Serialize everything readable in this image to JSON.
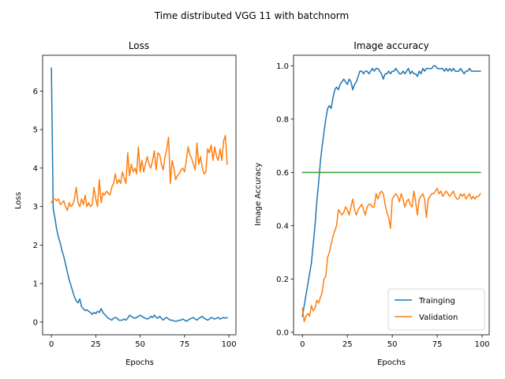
{
  "figure_title": "Time distributed VGG 11 with batchnorm",
  "colors": {
    "training": "#1f77b4",
    "validation": "#ff7f0e",
    "reference": "#2ca02c"
  },
  "chart_data": [
    {
      "type": "line",
      "title": "Loss",
      "xlabel": "Epochs",
      "ylabel": "Loss",
      "xlim": [
        -4.95,
        103.95
      ],
      "ylim": [
        -0.33,
        6.93
      ],
      "xticks": [
        0,
        25,
        50,
        75,
        100
      ],
      "yticks": [
        0,
        1,
        2,
        3,
        4,
        5,
        6
      ],
      "grid": false,
      "legend": "none",
      "series": [
        {
          "color": "#1f77b4",
          "x": [
            0,
            1,
            2,
            3,
            4,
            5,
            6,
            7,
            8,
            9,
            10,
            11,
            12,
            13,
            14,
            15,
            16,
            17,
            18,
            19,
            20,
            21,
            22,
            23,
            24,
            25,
            26,
            27,
            28,
            29,
            30,
            31,
            32,
            33,
            34,
            35,
            36,
            37,
            38,
            39,
            40,
            41,
            42,
            43,
            44,
            45,
            46,
            47,
            48,
            49,
            50,
            51,
            52,
            53,
            54,
            55,
            56,
            57,
            58,
            59,
            60,
            61,
            62,
            63,
            64,
            65,
            66,
            67,
            68,
            69,
            70,
            71,
            72,
            73,
            74,
            75,
            76,
            77,
            78,
            79,
            80,
            81,
            82,
            83,
            84,
            85,
            86,
            87,
            88,
            89,
            90,
            91,
            92,
            93,
            94,
            95,
            96,
            97,
            98,
            99
          ],
          "y": [
            6.6,
            2.95,
            2.7,
            2.4,
            2.2,
            2.05,
            1.85,
            1.7,
            1.5,
            1.3,
            1.1,
            0.95,
            0.8,
            0.65,
            0.55,
            0.5,
            0.6,
            0.4,
            0.35,
            0.3,
            0.32,
            0.28,
            0.25,
            0.2,
            0.25,
            0.22,
            0.28,
            0.25,
            0.35,
            0.25,
            0.2,
            0.15,
            0.1,
            0.08,
            0.05,
            0.1,
            0.12,
            0.1,
            0.05,
            0.05,
            0.05,
            0.08,
            0.05,
            0.1,
            0.18,
            0.15,
            0.12,
            0.1,
            0.12,
            0.15,
            0.18,
            0.15,
            0.12,
            0.1,
            0.08,
            0.1,
            0.15,
            0.12,
            0.18,
            0.12,
            0.1,
            0.15,
            0.1,
            0.05,
            0.1,
            0.12,
            0.08,
            0.05,
            0.05,
            0.03,
            0.02,
            0.03,
            0.05,
            0.05,
            0.08,
            0.05,
            0.02,
            0.05,
            0.08,
            0.1,
            0.12,
            0.08,
            0.05,
            0.1,
            0.12,
            0.15,
            0.1,
            0.08,
            0.05,
            0.08,
            0.12,
            0.1,
            0.08,
            0.1,
            0.12,
            0.08,
            0.1,
            0.12,
            0.1,
            0.12
          ]
        },
        {
          "color": "#ff7f0e",
          "x": [
            0,
            1,
            2,
            3,
            4,
            5,
            6,
            7,
            8,
            9,
            10,
            11,
            12,
            13,
            14,
            15,
            16,
            17,
            18,
            19,
            20,
            21,
            22,
            23,
            24,
            25,
            26,
            27,
            28,
            29,
            30,
            31,
            32,
            33,
            34,
            35,
            36,
            37,
            38,
            39,
            40,
            41,
            42,
            43,
            44,
            45,
            46,
            47,
            48,
            49,
            50,
            51,
            52,
            53,
            54,
            55,
            56,
            57,
            58,
            59,
            60,
            61,
            62,
            63,
            64,
            65,
            66,
            67,
            68,
            69,
            70,
            71,
            72,
            73,
            74,
            75,
            76,
            77,
            78,
            79,
            80,
            81,
            82,
            83,
            84,
            85,
            86,
            87,
            88,
            89,
            90,
            91,
            92,
            93,
            94,
            95,
            96,
            97,
            98,
            99
          ],
          "y": [
            3.1,
            3.2,
            3.2,
            3.15,
            3.2,
            3.05,
            3.1,
            3.15,
            3.0,
            2.9,
            3.1,
            3.0,
            3.05,
            3.2,
            3.5,
            3.1,
            3.0,
            3.2,
            3.05,
            3.3,
            3.0,
            3.1,
            3.0,
            3.05,
            3.5,
            3.2,
            3.0,
            3.7,
            3.1,
            3.35,
            3.3,
            3.4,
            3.35,
            3.3,
            3.5,
            3.6,
            3.85,
            3.6,
            3.7,
            3.6,
            3.9,
            3.75,
            3.6,
            4.4,
            3.8,
            4.1,
            3.9,
            4.0,
            3.85,
            4.55,
            3.9,
            4.2,
            3.9,
            4.1,
            4.3,
            4.1,
            4.0,
            4.2,
            4.45,
            3.95,
            4.4,
            4.35,
            4.1,
            3.95,
            4.3,
            4.5,
            4.8,
            3.6,
            4.2,
            4.0,
            3.7,
            3.8,
            3.85,
            3.95,
            4.0,
            3.9,
            4.2,
            4.55,
            4.35,
            4.25,
            4.1,
            3.95,
            4.65,
            4.1,
            4.3,
            4.0,
            3.85,
            3.9,
            4.5,
            4.4,
            4.6,
            4.2,
            4.55,
            4.3,
            4.2,
            4.5,
            4.2,
            4.7,
            4.85,
            4.1
          ]
        }
      ]
    },
    {
      "type": "line",
      "title": "Image accuracy",
      "xlabel": "Epochs",
      "ylabel": "Image Accuracy",
      "xlim": [
        -4.95,
        103.95
      ],
      "ylim": [
        -0.0095,
        1.0395
      ],
      "xticks": [
        0,
        25,
        50,
        75,
        100
      ],
      "yticks": [
        0.0,
        0.2,
        0.4,
        0.6,
        0.8,
        1.0
      ],
      "ytick_labels": [
        "0.0",
        "0.2",
        "0.4",
        "0.6",
        "0.8",
        "1.0"
      ],
      "grid": false,
      "legend": "lower right",
      "series": [
        {
          "name": "Trainging",
          "color": "#1f77b4",
          "x": [
            0,
            1,
            2,
            3,
            4,
            5,
            6,
            7,
            8,
            9,
            10,
            11,
            12,
            13,
            14,
            15,
            16,
            17,
            18,
            19,
            20,
            21,
            22,
            23,
            24,
            25,
            26,
            27,
            28,
            29,
            30,
            31,
            32,
            33,
            34,
            35,
            36,
            37,
            38,
            39,
            40,
            41,
            42,
            43,
            44,
            45,
            46,
            47,
            48,
            49,
            50,
            51,
            52,
            53,
            54,
            55,
            56,
            57,
            58,
            59,
            60,
            61,
            62,
            63,
            64,
            65,
            66,
            67,
            68,
            69,
            70,
            71,
            72,
            73,
            74,
            75,
            76,
            77,
            78,
            79,
            80,
            81,
            82,
            83,
            84,
            85,
            86,
            87,
            88,
            89,
            90,
            91,
            92,
            93,
            94,
            95,
            96,
            97,
            98,
            99
          ],
          "y": [
            0.06,
            0.1,
            0.14,
            0.18,
            0.22,
            0.26,
            0.33,
            0.4,
            0.49,
            0.56,
            0.64,
            0.7,
            0.75,
            0.8,
            0.84,
            0.85,
            0.84,
            0.88,
            0.91,
            0.92,
            0.91,
            0.93,
            0.94,
            0.95,
            0.94,
            0.93,
            0.95,
            0.94,
            0.91,
            0.93,
            0.94,
            0.96,
            0.98,
            0.98,
            0.97,
            0.98,
            0.98,
            0.97,
            0.98,
            0.99,
            0.98,
            0.99,
            0.99,
            0.98,
            0.97,
            0.95,
            0.97,
            0.97,
            0.98,
            0.97,
            0.98,
            0.98,
            0.99,
            0.98,
            0.97,
            0.97,
            0.98,
            0.97,
            0.98,
            0.99,
            0.97,
            0.98,
            0.97,
            0.97,
            0.96,
            0.98,
            0.97,
            0.99,
            0.98,
            0.99,
            0.99,
            0.99,
            0.99,
            1.0,
            1.0,
            0.99,
            0.99,
            0.99,
            0.99,
            0.98,
            0.99,
            0.98,
            0.99,
            0.98,
            0.99,
            0.98,
            0.98,
            0.98,
            0.99,
            0.98,
            0.97,
            0.98,
            0.98,
            0.99,
            0.98,
            0.98,
            0.98,
            0.98,
            0.98,
            0.98
          ]
        },
        {
          "name": "Validation",
          "color": "#ff7f0e",
          "x": [
            0,
            1,
            2,
            3,
            4,
            5,
            6,
            7,
            8,
            9,
            10,
            11,
            12,
            13,
            14,
            15,
            16,
            17,
            18,
            19,
            20,
            21,
            22,
            23,
            24,
            25,
            26,
            27,
            28,
            29,
            30,
            31,
            32,
            33,
            34,
            35,
            36,
            37,
            38,
            39,
            40,
            41,
            42,
            43,
            44,
            45,
            46,
            47,
            48,
            49,
            50,
            51,
            52,
            53,
            54,
            55,
            56,
            57,
            58,
            59,
            60,
            61,
            62,
            63,
            64,
            65,
            66,
            67,
            68,
            69,
            70,
            71,
            72,
            73,
            74,
            75,
            76,
            77,
            78,
            79,
            80,
            81,
            82,
            83,
            84,
            85,
            86,
            87,
            88,
            89,
            90,
            91,
            92,
            93,
            94,
            95,
            96,
            97,
            98,
            99
          ],
          "y": [
            0.09,
            0.04,
            0.06,
            0.07,
            0.06,
            0.1,
            0.08,
            0.09,
            0.12,
            0.11,
            0.13,
            0.15,
            0.2,
            0.21,
            0.28,
            0.3,
            0.33,
            0.36,
            0.38,
            0.4,
            0.46,
            0.45,
            0.44,
            0.45,
            0.47,
            0.46,
            0.44,
            0.47,
            0.5,
            0.46,
            0.44,
            0.46,
            0.47,
            0.48,
            0.46,
            0.44,
            0.47,
            0.48,
            0.48,
            0.47,
            0.47,
            0.52,
            0.5,
            0.52,
            0.53,
            0.52,
            0.48,
            0.45,
            0.43,
            0.39,
            0.5,
            0.51,
            0.52,
            0.51,
            0.49,
            0.52,
            0.5,
            0.47,
            0.49,
            0.5,
            0.48,
            0.47,
            0.53,
            0.49,
            0.44,
            0.5,
            0.51,
            0.52,
            0.5,
            0.43,
            0.5,
            0.51,
            0.52,
            0.52,
            0.53,
            0.54,
            0.52,
            0.53,
            0.51,
            0.52,
            0.53,
            0.52,
            0.51,
            0.52,
            0.53,
            0.51,
            0.5,
            0.5,
            0.52,
            0.51,
            0.52,
            0.5,
            0.51,
            0.52,
            0.5,
            0.51,
            0.5,
            0.51,
            0.51,
            0.52
          ]
        },
        {
          "color": "#2ca02c",
          "x": [
            0,
            99
          ],
          "y": [
            0.6,
            0.6
          ]
        }
      ]
    }
  ]
}
